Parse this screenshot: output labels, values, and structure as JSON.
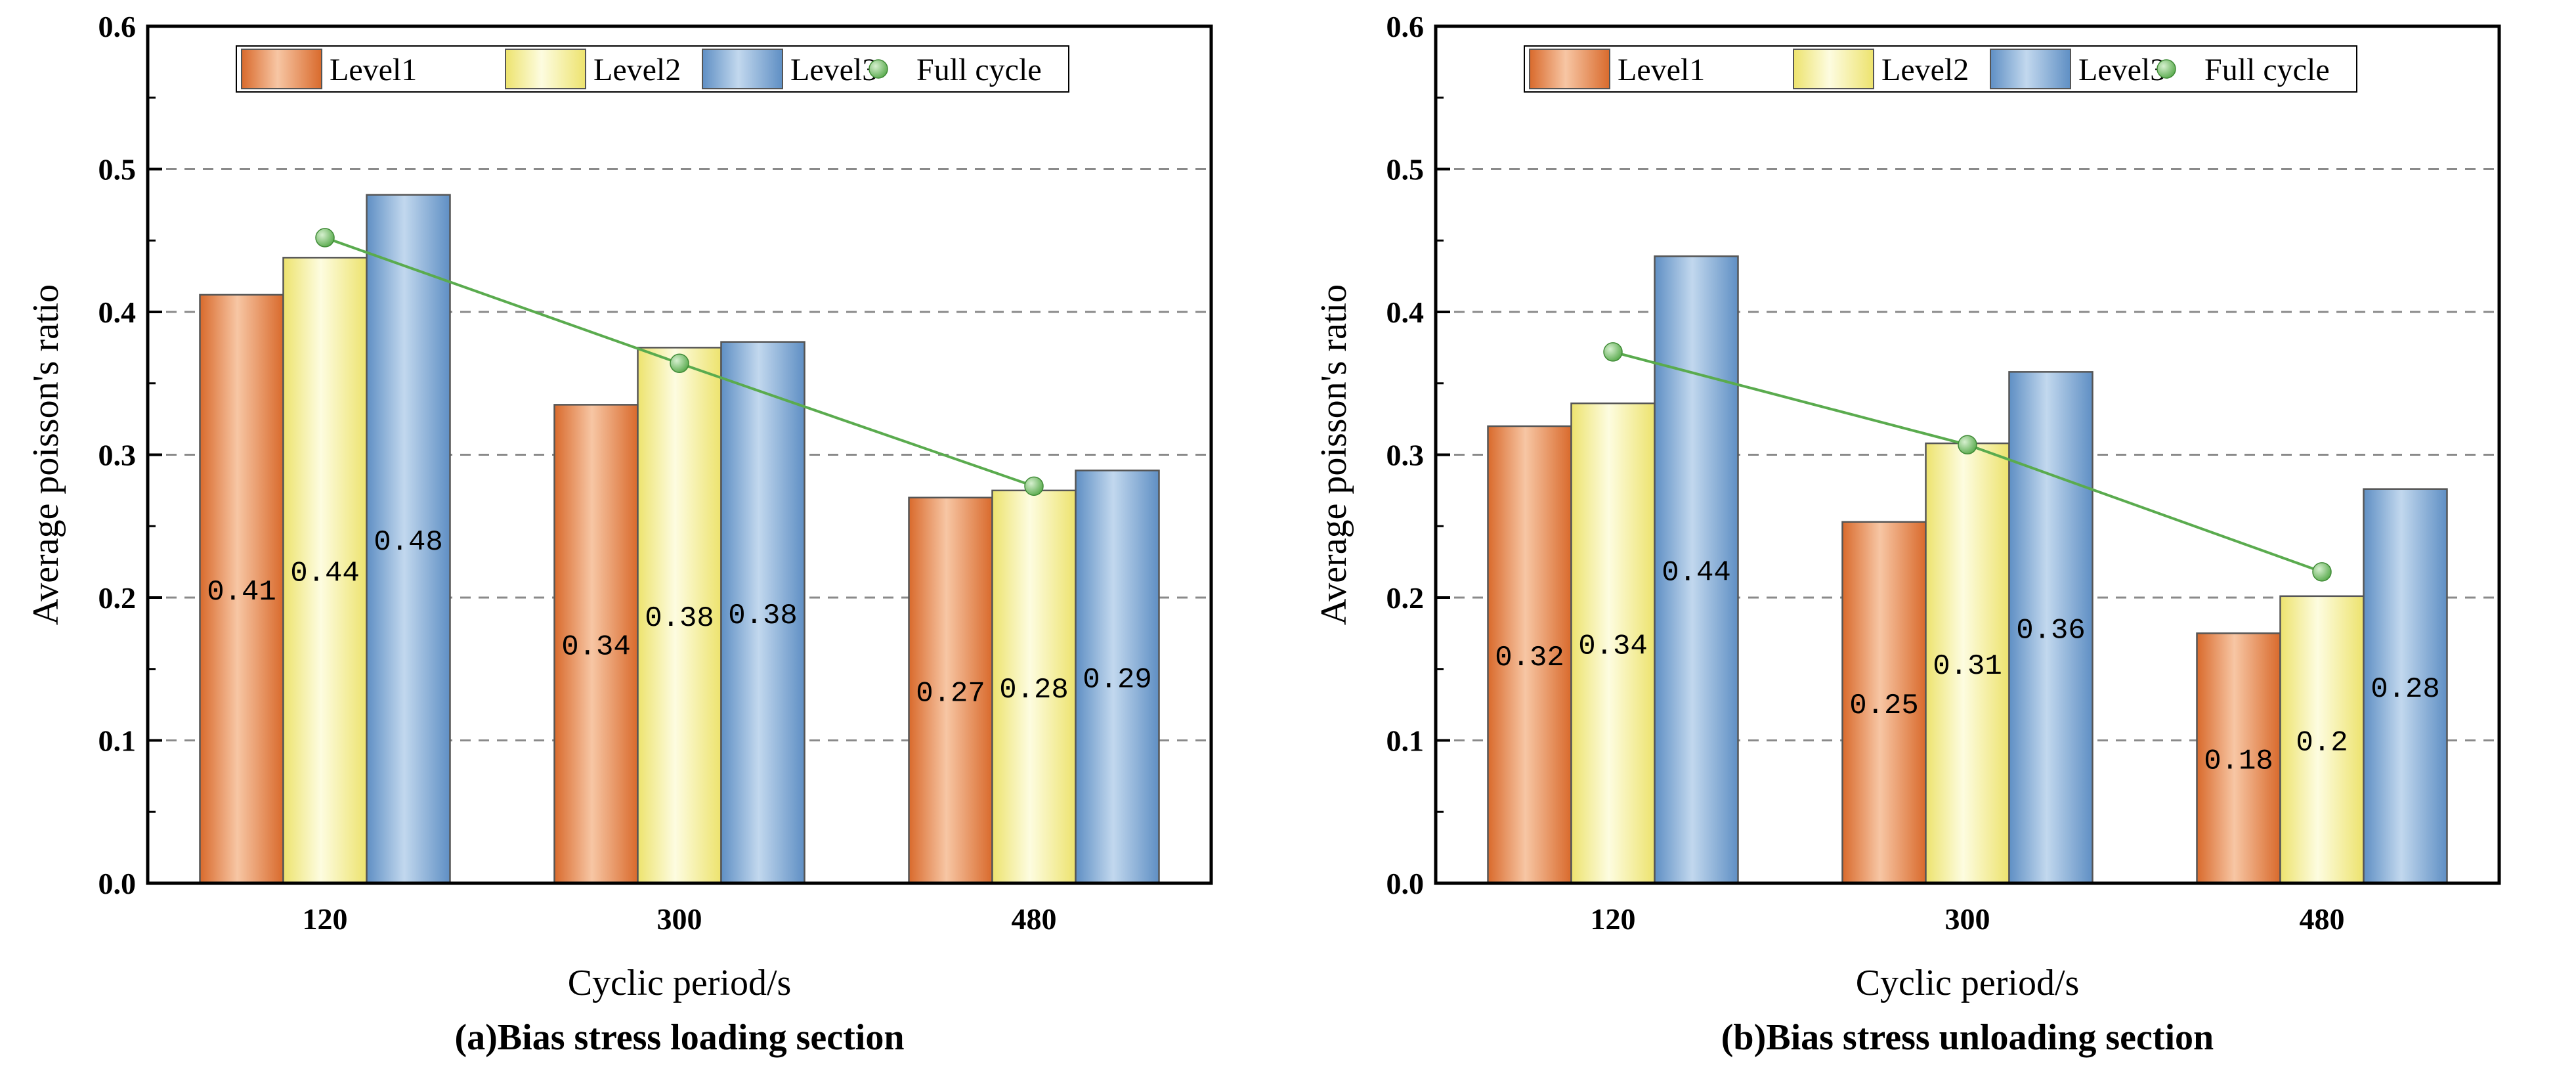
{
  "chart_data": [
    {
      "type": "bar",
      "panel": "a",
      "caption": "(a)Bias stress loading section",
      "xlabel": "Cyclic period/s",
      "ylabel": "Average poisson's ratio",
      "ylim": [
        0,
        0.6
      ],
      "yticks": [
        "0.0",
        "0.1",
        "0.2",
        "0.3",
        "0.4",
        "0.5",
        "0.6"
      ],
      "categories": [
        "120",
        "300",
        "480"
      ],
      "grid": "horizontal dashed at 0.1, 0.2, 0.3, 0.4, 0.5",
      "legend_position": "top",
      "series": [
        {
          "name": "Level1",
          "values": [
            0.412,
            0.335,
            0.27
          ],
          "labels": [
            "0.41",
            "0.34",
            "0.27"
          ]
        },
        {
          "name": "Level2",
          "values": [
            0.438,
            0.375,
            0.275
          ],
          "labels": [
            "0.44",
            "0.38",
            "0.28"
          ]
        },
        {
          "name": "Level3",
          "values": [
            0.482,
            0.379,
            0.289
          ],
          "labels": [
            "0.48",
            "0.38",
            "0.29"
          ]
        }
      ],
      "line_series": {
        "name": "Full cycle",
        "values": [
          0.452,
          0.364,
          0.278
        ]
      }
    },
    {
      "type": "bar",
      "panel": "b",
      "caption": "(b)Bias stress unloading section",
      "xlabel": "Cyclic period/s",
      "ylabel": "Average poisson's ratio",
      "ylim": [
        0,
        0.6
      ],
      "yticks": [
        "0.0",
        "0.1",
        "0.2",
        "0.3",
        "0.4",
        "0.5",
        "0.6"
      ],
      "categories": [
        "120",
        "300",
        "480"
      ],
      "grid": "horizontal dashed at 0.1, 0.2, 0.3, 0.4, 0.5",
      "legend_position": "top",
      "series": [
        {
          "name": "Level1",
          "values": [
            0.32,
            0.253,
            0.175
          ],
          "labels": [
            "0.32",
            "0.25",
            "0.18"
          ]
        },
        {
          "name": "Level2",
          "values": [
            0.336,
            0.308,
            0.201
          ],
          "labels": [
            "0.34",
            "0.31",
            "0.2"
          ]
        },
        {
          "name": "Level3",
          "values": [
            0.439,
            0.358,
            0.276
          ],
          "labels": [
            "0.44",
            "0.36",
            "0.28"
          ]
        }
      ],
      "line_series": {
        "name": "Full cycle",
        "values": [
          0.372,
          0.307,
          0.218
        ]
      }
    }
  ],
  "colors": {
    "level1": [
      "#f7c6a4",
      "#d96a2c"
    ],
    "level2": [
      "#fdfce0",
      "#ede36e"
    ],
    "level3": [
      "#c2d8ee",
      "#5f8fc4"
    ],
    "full_cycle": "#5aab4e",
    "grid": "#8a8a8a"
  }
}
